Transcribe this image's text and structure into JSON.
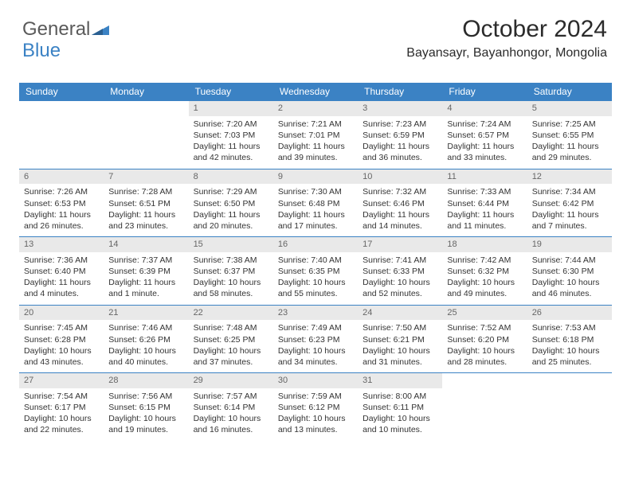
{
  "brand": {
    "part1": "General",
    "part2": "Blue"
  },
  "header": {
    "month_title": "October 2024",
    "location": "Bayansayr, Bayanhongor, Mongolia"
  },
  "colors": {
    "accent": "#3b82c4",
    "day_header_bg": "#e9e9e9",
    "text": "#333333"
  },
  "daynames": [
    "Sunday",
    "Monday",
    "Tuesday",
    "Wednesday",
    "Thursday",
    "Friday",
    "Saturday"
  ],
  "weeks": [
    [
      null,
      null,
      {
        "n": "1",
        "sunrise": "Sunrise: 7:20 AM",
        "sunset": "Sunset: 7:03 PM",
        "daylight": "Daylight: 11 hours and 42 minutes."
      },
      {
        "n": "2",
        "sunrise": "Sunrise: 7:21 AM",
        "sunset": "Sunset: 7:01 PM",
        "daylight": "Daylight: 11 hours and 39 minutes."
      },
      {
        "n": "3",
        "sunrise": "Sunrise: 7:23 AM",
        "sunset": "Sunset: 6:59 PM",
        "daylight": "Daylight: 11 hours and 36 minutes."
      },
      {
        "n": "4",
        "sunrise": "Sunrise: 7:24 AM",
        "sunset": "Sunset: 6:57 PM",
        "daylight": "Daylight: 11 hours and 33 minutes."
      },
      {
        "n": "5",
        "sunrise": "Sunrise: 7:25 AM",
        "sunset": "Sunset: 6:55 PM",
        "daylight": "Daylight: 11 hours and 29 minutes."
      }
    ],
    [
      {
        "n": "6",
        "sunrise": "Sunrise: 7:26 AM",
        "sunset": "Sunset: 6:53 PM",
        "daylight": "Daylight: 11 hours and 26 minutes."
      },
      {
        "n": "7",
        "sunrise": "Sunrise: 7:28 AM",
        "sunset": "Sunset: 6:51 PM",
        "daylight": "Daylight: 11 hours and 23 minutes."
      },
      {
        "n": "8",
        "sunrise": "Sunrise: 7:29 AM",
        "sunset": "Sunset: 6:50 PM",
        "daylight": "Daylight: 11 hours and 20 minutes."
      },
      {
        "n": "9",
        "sunrise": "Sunrise: 7:30 AM",
        "sunset": "Sunset: 6:48 PM",
        "daylight": "Daylight: 11 hours and 17 minutes."
      },
      {
        "n": "10",
        "sunrise": "Sunrise: 7:32 AM",
        "sunset": "Sunset: 6:46 PM",
        "daylight": "Daylight: 11 hours and 14 minutes."
      },
      {
        "n": "11",
        "sunrise": "Sunrise: 7:33 AM",
        "sunset": "Sunset: 6:44 PM",
        "daylight": "Daylight: 11 hours and 11 minutes."
      },
      {
        "n": "12",
        "sunrise": "Sunrise: 7:34 AM",
        "sunset": "Sunset: 6:42 PM",
        "daylight": "Daylight: 11 hours and 7 minutes."
      }
    ],
    [
      {
        "n": "13",
        "sunrise": "Sunrise: 7:36 AM",
        "sunset": "Sunset: 6:40 PM",
        "daylight": "Daylight: 11 hours and 4 minutes."
      },
      {
        "n": "14",
        "sunrise": "Sunrise: 7:37 AM",
        "sunset": "Sunset: 6:39 PM",
        "daylight": "Daylight: 11 hours and 1 minute."
      },
      {
        "n": "15",
        "sunrise": "Sunrise: 7:38 AM",
        "sunset": "Sunset: 6:37 PM",
        "daylight": "Daylight: 10 hours and 58 minutes."
      },
      {
        "n": "16",
        "sunrise": "Sunrise: 7:40 AM",
        "sunset": "Sunset: 6:35 PM",
        "daylight": "Daylight: 10 hours and 55 minutes."
      },
      {
        "n": "17",
        "sunrise": "Sunrise: 7:41 AM",
        "sunset": "Sunset: 6:33 PM",
        "daylight": "Daylight: 10 hours and 52 minutes."
      },
      {
        "n": "18",
        "sunrise": "Sunrise: 7:42 AM",
        "sunset": "Sunset: 6:32 PM",
        "daylight": "Daylight: 10 hours and 49 minutes."
      },
      {
        "n": "19",
        "sunrise": "Sunrise: 7:44 AM",
        "sunset": "Sunset: 6:30 PM",
        "daylight": "Daylight: 10 hours and 46 minutes."
      }
    ],
    [
      {
        "n": "20",
        "sunrise": "Sunrise: 7:45 AM",
        "sunset": "Sunset: 6:28 PM",
        "daylight": "Daylight: 10 hours and 43 minutes."
      },
      {
        "n": "21",
        "sunrise": "Sunrise: 7:46 AM",
        "sunset": "Sunset: 6:26 PM",
        "daylight": "Daylight: 10 hours and 40 minutes."
      },
      {
        "n": "22",
        "sunrise": "Sunrise: 7:48 AM",
        "sunset": "Sunset: 6:25 PM",
        "daylight": "Daylight: 10 hours and 37 minutes."
      },
      {
        "n": "23",
        "sunrise": "Sunrise: 7:49 AM",
        "sunset": "Sunset: 6:23 PM",
        "daylight": "Daylight: 10 hours and 34 minutes."
      },
      {
        "n": "24",
        "sunrise": "Sunrise: 7:50 AM",
        "sunset": "Sunset: 6:21 PM",
        "daylight": "Daylight: 10 hours and 31 minutes."
      },
      {
        "n": "25",
        "sunrise": "Sunrise: 7:52 AM",
        "sunset": "Sunset: 6:20 PM",
        "daylight": "Daylight: 10 hours and 28 minutes."
      },
      {
        "n": "26",
        "sunrise": "Sunrise: 7:53 AM",
        "sunset": "Sunset: 6:18 PM",
        "daylight": "Daylight: 10 hours and 25 minutes."
      }
    ],
    [
      {
        "n": "27",
        "sunrise": "Sunrise: 7:54 AM",
        "sunset": "Sunset: 6:17 PM",
        "daylight": "Daylight: 10 hours and 22 minutes."
      },
      {
        "n": "28",
        "sunrise": "Sunrise: 7:56 AM",
        "sunset": "Sunset: 6:15 PM",
        "daylight": "Daylight: 10 hours and 19 minutes."
      },
      {
        "n": "29",
        "sunrise": "Sunrise: 7:57 AM",
        "sunset": "Sunset: 6:14 PM",
        "daylight": "Daylight: 10 hours and 16 minutes."
      },
      {
        "n": "30",
        "sunrise": "Sunrise: 7:59 AM",
        "sunset": "Sunset: 6:12 PM",
        "daylight": "Daylight: 10 hours and 13 minutes."
      },
      {
        "n": "31",
        "sunrise": "Sunrise: 8:00 AM",
        "sunset": "Sunset: 6:11 PM",
        "daylight": "Daylight: 10 hours and 10 minutes."
      },
      null,
      null
    ]
  ]
}
